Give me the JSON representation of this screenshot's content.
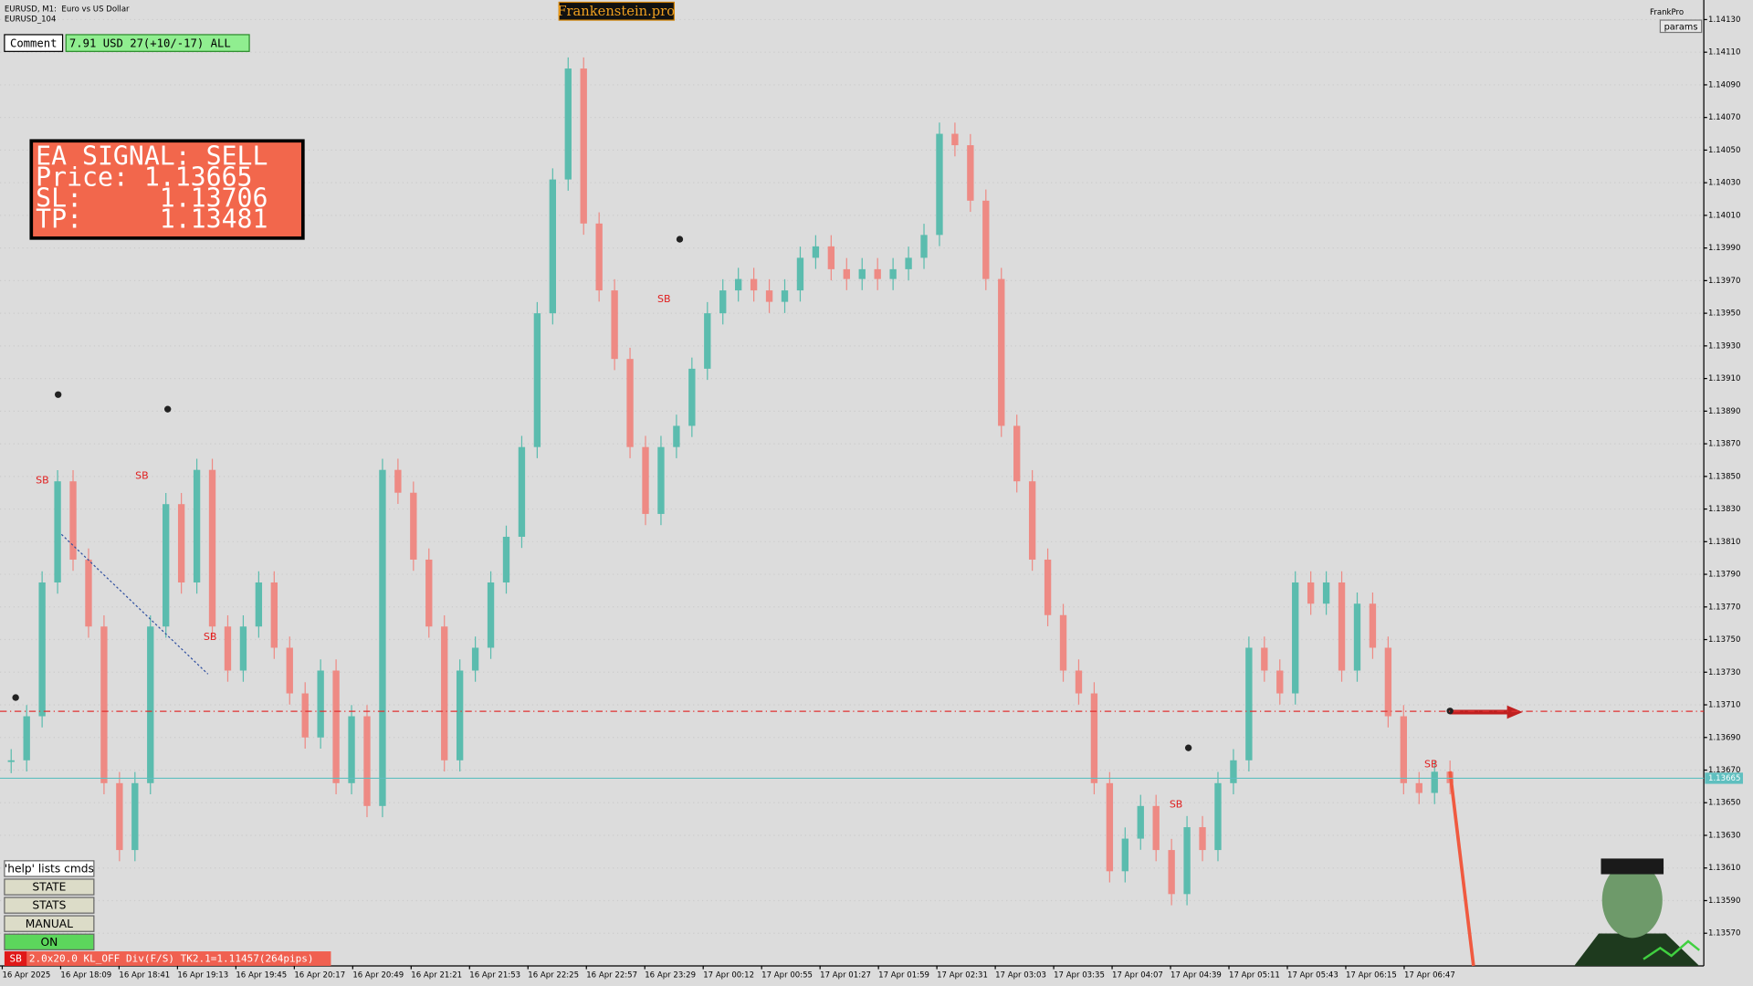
{
  "header": {
    "symbol": "EURUSD, M1:  Euro vs US Dollar",
    "account": "EURUSD_104",
    "brand": "Frankenstein.pro",
    "user": "FrankPro",
    "params": "params"
  },
  "comment": {
    "label": "Comment",
    "value": "7.91 USD 27(+10/-17) ALL"
  },
  "signal_box": {
    "lines": [
      "EA SIGNAL: SELL",
      "Price: 1.13665",
      "SL:     1.13706",
      "TP:     1.13481"
    ]
  },
  "buttons": [
    "'help' lists cmds",
    "STATE",
    "STATS",
    "MANUAL",
    "ON"
  ],
  "status": {
    "tag": "SB",
    "text": "2.0x20.0 KL_OFF Div(F/S) TK2.1=1.11457(264pips)"
  },
  "chart_data": {
    "type": "candle-line",
    "up_color": "#5bbcae",
    "down_color": "#ee8a84",
    "grid": true,
    "ylim": [
      1.1355,
      1.14142
    ],
    "yticks": [
      {
        "value": 1.1413,
        "label": "1.14130"
      },
      {
        "value": 1.1411,
        "label": "1.14110"
      },
      {
        "value": 1.1409,
        "label": "1.14090"
      },
      {
        "value": 1.1407,
        "label": "1.14070"
      },
      {
        "value": 1.1405,
        "label": "1.14050"
      },
      {
        "value": 1.1403,
        "label": "1.14030"
      },
      {
        "value": 1.1401,
        "label": "1.14010"
      },
      {
        "value": 1.1399,
        "label": "1.13990"
      },
      {
        "value": 1.1397,
        "label": "1.13970"
      },
      {
        "value": 1.1395,
        "label": "1.13950"
      },
      {
        "value": 1.1393,
        "label": "1.13930"
      },
      {
        "value": 1.1391,
        "label": "1.13910"
      },
      {
        "value": 1.1389,
        "label": "1.13890"
      },
      {
        "value": 1.1387,
        "label": "1.13870"
      },
      {
        "value": 1.1385,
        "label": "1.13850"
      },
      {
        "value": 1.1383,
        "label": "1.13830"
      },
      {
        "value": 1.1381,
        "label": "1.13810"
      },
      {
        "value": 1.1379,
        "label": "1.13790"
      },
      {
        "value": 1.1377,
        "label": "1.13770"
      },
      {
        "value": 1.1375,
        "label": "1.13750"
      },
      {
        "value": 1.1373,
        "label": "1.13730"
      },
      {
        "value": 1.1371,
        "label": "1.13710"
      },
      {
        "value": 1.1369,
        "label": "1.13690"
      },
      {
        "value": 1.1367,
        "label": "1.13670"
      },
      {
        "value": 1.1365,
        "label": "1.13650"
      },
      {
        "value": 1.1363,
        "label": "1.13630"
      },
      {
        "value": 1.1361,
        "label": "1.13610"
      },
      {
        "value": 1.1359,
        "label": "1.13590"
      },
      {
        "value": 1.1357,
        "label": "1.13570"
      }
    ],
    "x_tick_labels": [
      "16 Apr 2025",
      "16 Apr 18:09",
      "16 Apr 18:41",
      "16 Apr 19:13",
      "16 Apr 19:45",
      "16 Apr 20:17",
      "16 Apr 20:49",
      "16 Apr 21:21",
      "16 Apr 21:53",
      "16 Apr 22:25",
      "16 Apr 22:57",
      "16 Apr 23:29",
      "17 Apr 00:12",
      "17 Apr 00:55",
      "17 Apr 01:27",
      "17 Apr 01:59",
      "17 Apr 02:31",
      "17 Apr 03:03",
      "17 Apr 03:35",
      "17 Apr 04:07",
      "17 Apr 04:39",
      "17 Apr 05:11",
      "17 Apr 05:43",
      "17 Apr 06:15",
      "17 Apr 06:47"
    ],
    "series": [
      {
        "values": [
          1.13676,
          1.13703,
          1.13785,
          1.13847,
          1.13799,
          1.13758,
          1.13662,
          1.13621,
          1.13662,
          1.13758,
          1.13833,
          1.13785,
          1.13854,
          1.13758,
          1.13731,
          1.13758,
          1.13785,
          1.13745,
          1.13717,
          1.1369,
          1.13731,
          1.13662,
          1.13703,
          1.13648,
          1.13854,
          1.1384,
          1.13799,
          1.13758,
          1.13676,
          1.13731,
          1.13745,
          1.13785,
          1.13813,
          1.13868,
          1.1395,
          1.14032,
          1.141,
          1.14005,
          1.13964,
          1.13922,
          1.13868,
          1.13827,
          1.13868,
          1.13881,
          1.13916,
          1.1395,
          1.13964,
          1.13971,
          1.13964,
          1.13957,
          1.13964,
          1.13984,
          1.13991,
          1.13977,
          1.13971,
          1.13977,
          1.13971,
          1.13977,
          1.13984,
          1.13998,
          1.1406,
          1.14053,
          1.14019,
          1.13971,
          1.13881,
          1.13847,
          1.13799,
          1.13765,
          1.13731,
          1.13717,
          1.13662,
          1.13608,
          1.13628,
          1.13648,
          1.13621,
          1.13594,
          1.13635,
          1.13621,
          1.13662,
          1.13676,
          1.13745,
          1.13731,
          1.13717,
          1.13785,
          1.13772,
          1.13785,
          1.13731,
          1.13772,
          1.13745,
          1.13703,
          1.13662,
          1.13656,
          1.13669,
          1.13662
        ]
      }
    ],
    "price_line": 1.13665,
    "price_line_color": "#5fbfbf",
    "sl_line": 1.13706,
    "sl_line_color": "#e03030",
    "markers": [
      "SB",
      "SB",
      "SB",
      "SB",
      "SB",
      "SB"
    ]
  }
}
